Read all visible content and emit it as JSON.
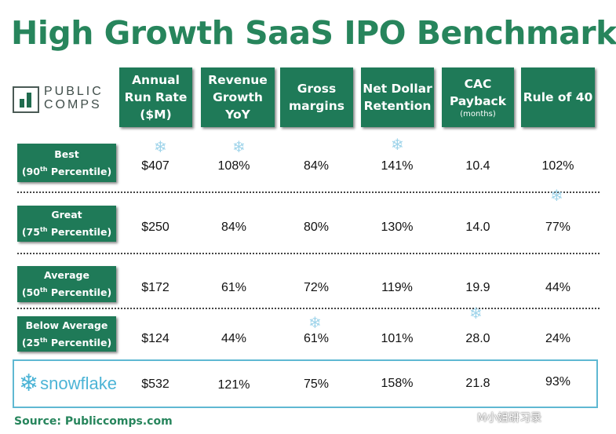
{
  "title": "High Growth SaaS IPO Benchmarks",
  "logo": {
    "line1": "PUBLIC",
    "line2": "COMPS"
  },
  "chart_data": {
    "type": "table",
    "title": "High Growth SaaS IPO Benchmarks",
    "columns": [
      {
        "label": "Annual\nRun Rate\n($M)",
        "sub": ""
      },
      {
        "label": "Revenue\nGrowth\nYoY",
        "sub": ""
      },
      {
        "label": "Gross\nmargins",
        "sub": ""
      },
      {
        "label": "Net Dollar\nRetention",
        "sub": ""
      },
      {
        "label": "CAC\nPayback",
        "sub": "(months)"
      },
      {
        "label": "Rule of 40",
        "sub": ""
      }
    ],
    "rows": [
      {
        "label": "Best",
        "pct": "90",
        "sup": "th",
        "pct_word": "Percentile",
        "values": [
          "$407",
          "108%",
          "84%",
          "141%",
          "10.4",
          "102%"
        ]
      },
      {
        "label": "Great",
        "pct": "75",
        "sup": "th",
        "pct_word": "Percentile",
        "values": [
          "$250",
          "84%",
          "80%",
          "130%",
          "14.0",
          "77%"
        ]
      },
      {
        "label": "Average",
        "pct": "50",
        "sup": "th",
        "pct_word": "Percentile",
        "values": [
          "$172",
          "61%",
          "72%",
          "119%",
          "19.9",
          "44%"
        ]
      },
      {
        "label": "Below Average",
        "pct": "25",
        "sup": "th",
        "pct_word": "Percentile",
        "values": [
          "$124",
          "44%",
          "61%",
          "101%",
          "28.0",
          "24%"
        ]
      }
    ],
    "highlight_row": {
      "label": "snowflake",
      "values": [
        "$532",
        "121%",
        "75%",
        "158%",
        "21.8",
        "93%"
      ]
    },
    "marker_icon": "snowflake-icon",
    "colors": {
      "header_green": "#1f7a58",
      "title_green": "#27855c",
      "snowflake_blue": "#5fb8d2"
    }
  },
  "source": "Source: Publiccomps.com",
  "watermark": "M小姐研习录"
}
